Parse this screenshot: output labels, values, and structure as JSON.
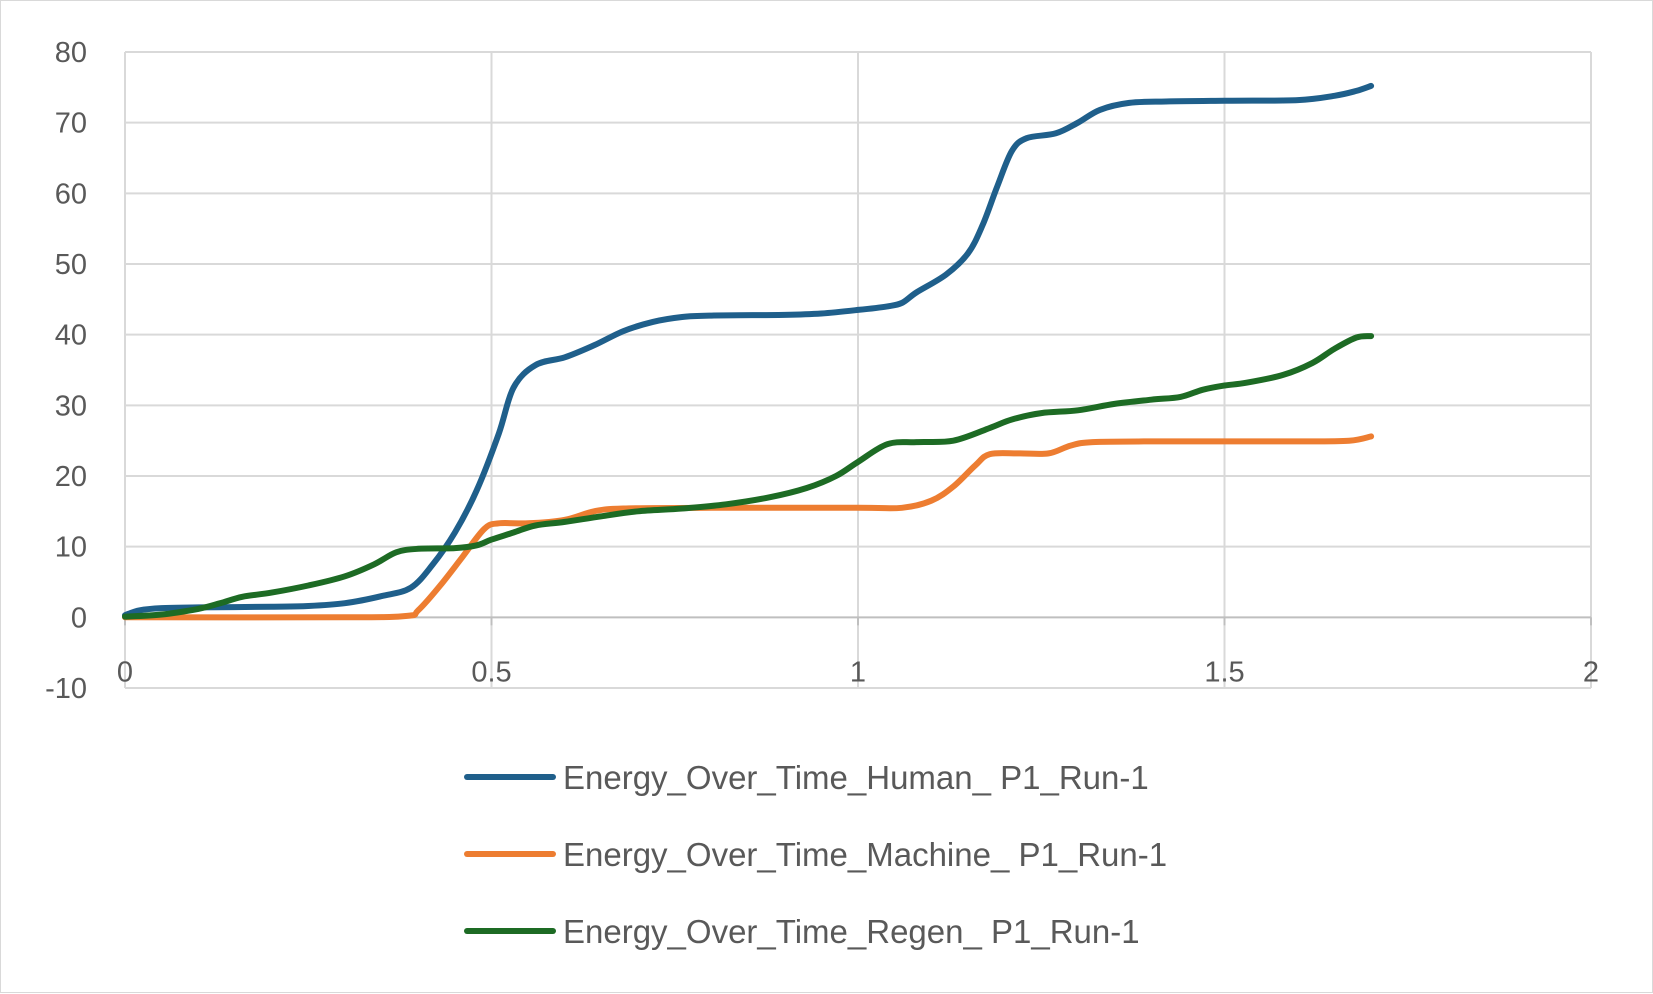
{
  "chart_data": {
    "type": "line",
    "title": "",
    "xlabel": "",
    "ylabel": "",
    "xlim": [
      0,
      2
    ],
    "ylim": [
      -10,
      80
    ],
    "x_ticks": [
      0,
      0.5,
      1,
      1.5,
      2
    ],
    "y_ticks": [
      -10,
      0,
      10,
      20,
      30,
      40,
      50,
      60,
      70,
      80
    ],
    "x_tick_labels": [
      "0",
      "0.5",
      "1",
      "1.5",
      "2"
    ],
    "y_tick_labels": [
      "-10",
      "0",
      "10",
      "20",
      "30",
      "40",
      "50",
      "60",
      "70",
      "80"
    ],
    "grid": true,
    "legend_position": "bottom",
    "series": [
      {
        "name": "Energy_Over_Time_Human_ P1_Run-1",
        "color": "#1f5f8b",
        "points": [
          [
            0,
            0.3
          ],
          [
            0.02,
            1.0
          ],
          [
            0.05,
            1.3
          ],
          [
            0.1,
            1.4
          ],
          [
            0.2,
            1.5
          ],
          [
            0.25,
            1.6
          ],
          [
            0.3,
            2.0
          ],
          [
            0.35,
            3.0
          ],
          [
            0.39,
            4.2
          ],
          [
            0.42,
            7.5
          ],
          [
            0.45,
            12.0
          ],
          [
            0.48,
            18.0
          ],
          [
            0.51,
            26.0
          ],
          [
            0.53,
            32.5
          ],
          [
            0.56,
            35.7
          ],
          [
            0.6,
            36.8
          ],
          [
            0.64,
            38.5
          ],
          [
            0.68,
            40.5
          ],
          [
            0.72,
            41.8
          ],
          [
            0.76,
            42.5
          ],
          [
            0.8,
            42.7
          ],
          [
            0.9,
            42.8
          ],
          [
            0.95,
            43.0
          ],
          [
            1.0,
            43.5
          ],
          [
            1.04,
            44.0
          ],
          [
            1.06,
            44.5
          ],
          [
            1.08,
            46.0
          ],
          [
            1.12,
            48.5
          ],
          [
            1.15,
            51.5
          ],
          [
            1.17,
            55.5
          ],
          [
            1.19,
            61.0
          ],
          [
            1.21,
            66.0
          ],
          [
            1.23,
            67.8
          ],
          [
            1.27,
            68.5
          ],
          [
            1.3,
            70.0
          ],
          [
            1.33,
            71.8
          ],
          [
            1.37,
            72.8
          ],
          [
            1.42,
            73.0
          ],
          [
            1.5,
            73.1
          ],
          [
            1.6,
            73.2
          ],
          [
            1.65,
            73.8
          ],
          [
            1.68,
            74.5
          ],
          [
            1.7,
            75.2
          ]
        ]
      },
      {
        "name": "Energy_Over_Time_Machine_ P1_Run-1",
        "color": "#ed7d31",
        "points": [
          [
            0,
            0
          ],
          [
            0.3,
            0
          ],
          [
            0.385,
            0.2
          ],
          [
            0.4,
            1.0
          ],
          [
            0.43,
            4.5
          ],
          [
            0.46,
            8.5
          ],
          [
            0.49,
            12.5
          ],
          [
            0.51,
            13.3
          ],
          [
            0.55,
            13.3
          ],
          [
            0.6,
            13.8
          ],
          [
            0.64,
            15.0
          ],
          [
            0.68,
            15.4
          ],
          [
            0.8,
            15.5
          ],
          [
            1.0,
            15.5
          ],
          [
            1.06,
            15.5
          ],
          [
            1.1,
            16.5
          ],
          [
            1.13,
            18.5
          ],
          [
            1.16,
            21.5
          ],
          [
            1.18,
            23.1
          ],
          [
            1.22,
            23.2
          ],
          [
            1.26,
            23.2
          ],
          [
            1.29,
            24.3
          ],
          [
            1.32,
            24.8
          ],
          [
            1.4,
            24.9
          ],
          [
            1.5,
            24.9
          ],
          [
            1.6,
            24.9
          ],
          [
            1.67,
            25.0
          ],
          [
            1.7,
            25.6
          ]
        ]
      },
      {
        "name": "Energy_Over_Time_Regen_ P1_Run-1",
        "color": "#1d6b24",
        "points": [
          [
            0,
            0.1
          ],
          [
            0.05,
            0.4
          ],
          [
            0.1,
            1.2
          ],
          [
            0.13,
            2.0
          ],
          [
            0.16,
            2.9
          ],
          [
            0.2,
            3.5
          ],
          [
            0.25,
            4.5
          ],
          [
            0.3,
            5.8
          ],
          [
            0.34,
            7.5
          ],
          [
            0.37,
            9.2
          ],
          [
            0.4,
            9.7
          ],
          [
            0.45,
            9.8
          ],
          [
            0.48,
            10.2
          ],
          [
            0.5,
            11.0
          ],
          [
            0.53,
            12.0
          ],
          [
            0.56,
            13.0
          ],
          [
            0.6,
            13.5
          ],
          [
            0.65,
            14.3
          ],
          [
            0.7,
            15.0
          ],
          [
            0.76,
            15.4
          ],
          [
            0.82,
            16.0
          ],
          [
            0.88,
            17.0
          ],
          [
            0.93,
            18.3
          ],
          [
            0.97,
            20.0
          ],
          [
            1.0,
            22.0
          ],
          [
            1.04,
            24.5
          ],
          [
            1.08,
            24.8
          ],
          [
            1.13,
            25.0
          ],
          [
            1.18,
            26.8
          ],
          [
            1.21,
            28.0
          ],
          [
            1.25,
            28.9
          ],
          [
            1.3,
            29.3
          ],
          [
            1.35,
            30.2
          ],
          [
            1.4,
            30.8
          ],
          [
            1.44,
            31.2
          ],
          [
            1.47,
            32.2
          ],
          [
            1.5,
            32.8
          ],
          [
            1.53,
            33.2
          ],
          [
            1.58,
            34.3
          ],
          [
            1.62,
            36.0
          ],
          [
            1.65,
            38.0
          ],
          [
            1.68,
            39.6
          ],
          [
            1.7,
            39.8
          ]
        ]
      }
    ]
  }
}
